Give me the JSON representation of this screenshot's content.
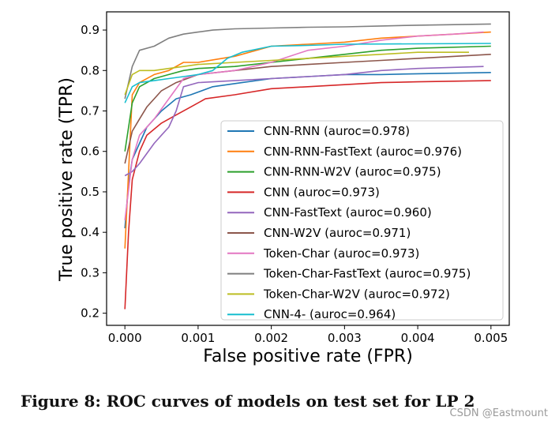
{
  "chart_data": {
    "type": "line",
    "title": "",
    "xlabel": "False positive rate (FPR)",
    "ylabel": "True positive rate (TPR)",
    "xlim": [
      -0.00025,
      0.00525
    ],
    "ylim": [
      0.17,
      0.945
    ],
    "xticks": [
      0.0,
      0.001,
      0.002,
      0.003,
      0.004,
      0.005
    ],
    "xtick_labels": [
      "0.000",
      "0.001",
      "0.002",
      "0.003",
      "0.004",
      "0.005"
    ],
    "yticks": [
      0.2,
      0.3,
      0.4,
      0.5,
      0.6,
      0.7,
      0.8,
      0.9
    ],
    "ytick_labels": [
      "0.2",
      "0.3",
      "0.4",
      "0.5",
      "0.6",
      "0.7",
      "0.8",
      "0.9"
    ],
    "grid": false,
    "legend_position": "lower-right",
    "series": [
      {
        "name": "CNN-RNN (auroc=0.978)",
        "color": "#1f77b4",
        "x": [
          0,
          5e-05,
          0.0001,
          0.0002,
          0.0003,
          0.0005,
          0.0007,
          0.0009,
          0.0012,
          0.0016,
          0.002,
          0.0025,
          0.003,
          0.0035,
          0.004,
          0.005
        ],
        "y": [
          0.41,
          0.52,
          0.58,
          0.62,
          0.66,
          0.7,
          0.73,
          0.74,
          0.76,
          0.77,
          0.78,
          0.785,
          0.79,
          0.79,
          0.792,
          0.795
        ]
      },
      {
        "name": "CNN-RNN-FastText (auroc=0.976)",
        "color": "#ff7f0e",
        "x": [
          0,
          0.0001,
          0.0002,
          0.0004,
          0.0006,
          0.0008,
          0.001,
          0.0015,
          0.002,
          0.0025,
          0.003,
          0.0035,
          0.004,
          0.0045,
          0.005
        ],
        "y": [
          0.36,
          0.74,
          0.77,
          0.79,
          0.8,
          0.82,
          0.82,
          0.835,
          0.86,
          0.865,
          0.87,
          0.88,
          0.885,
          0.89,
          0.895
        ]
      },
      {
        "name": "CNN-RNN-W2V (auroc=0.975)",
        "color": "#2ca02c",
        "x": [
          0,
          0.0001,
          0.0002,
          0.0004,
          0.0006,
          0.0008,
          0.001,
          0.0015,
          0.002,
          0.0025,
          0.003,
          0.0035,
          0.004,
          0.005
        ],
        "y": [
          0.6,
          0.72,
          0.76,
          0.78,
          0.79,
          0.8,
          0.805,
          0.81,
          0.82,
          0.83,
          0.84,
          0.85,
          0.855,
          0.86
        ]
      },
      {
        "name": "CNN (auroc=0.973)",
        "color": "#d62728",
        "x": [
          0,
          5e-05,
          0.0001,
          0.0002,
          0.0003,
          0.0005,
          0.0007,
          0.0009,
          0.0011,
          0.0015,
          0.002,
          0.0025,
          0.003,
          0.0035,
          0.004,
          0.005
        ],
        "y": [
          0.21,
          0.4,
          0.53,
          0.6,
          0.64,
          0.67,
          0.69,
          0.71,
          0.73,
          0.74,
          0.755,
          0.76,
          0.765,
          0.77,
          0.772,
          0.775
        ]
      },
      {
        "name": "CNN-FastText (auroc=0.960)",
        "color": "#9467bd",
        "x": [
          0,
          0.0001,
          0.0002,
          0.0004,
          0.0005,
          0.0006,
          0.0007,
          0.0008,
          0.001,
          0.0015,
          0.002,
          0.0025,
          0.003,
          0.0035,
          0.004,
          0.0049
        ],
        "y": [
          0.54,
          0.55,
          0.57,
          0.62,
          0.64,
          0.66,
          0.7,
          0.76,
          0.77,
          0.775,
          0.78,
          0.785,
          0.79,
          0.8,
          0.805,
          0.81
        ]
      },
      {
        "name": "CNN-W2V (auroc=0.971)",
        "color": "#8c564b",
        "x": [
          0,
          0.0001,
          0.0002,
          0.0003,
          0.0004,
          0.0005,
          0.0007,
          0.001,
          0.0015,
          0.002,
          0.0025,
          0.003,
          0.0035,
          0.004,
          0.005
        ],
        "y": [
          0.57,
          0.65,
          0.68,
          0.71,
          0.73,
          0.75,
          0.77,
          0.79,
          0.8,
          0.81,
          0.815,
          0.82,
          0.825,
          0.83,
          0.84
        ]
      },
      {
        "name": "Token-Char (auroc=0.973)",
        "color": "#e377c2",
        "x": [
          0,
          0.0001,
          0.0002,
          0.0004,
          0.0006,
          0.0008,
          0.001,
          0.0015,
          0.002,
          0.0025,
          0.003,
          0.0035,
          0.004,
          0.0045,
          0.0049
        ],
        "y": [
          0.43,
          0.58,
          0.64,
          0.68,
          0.73,
          0.78,
          0.79,
          0.8,
          0.82,
          0.85,
          0.86,
          0.875,
          0.885,
          0.89,
          0.895
        ]
      },
      {
        "name": "Token-Char-FastText (auroc=0.975)",
        "color": "#7f7f7f",
        "x": [
          0,
          0.0001,
          0.0002,
          0.0004,
          0.0006,
          0.0008,
          0.001,
          0.0012,
          0.0015,
          0.002,
          0.0025,
          0.003,
          0.0035,
          0.004,
          0.005
        ],
        "y": [
          0.73,
          0.81,
          0.85,
          0.86,
          0.88,
          0.89,
          0.895,
          0.9,
          0.903,
          0.905,
          0.907,
          0.908,
          0.91,
          0.912,
          0.915
        ]
      },
      {
        "name": "Token-Char-W2V (auroc=0.972)",
        "color": "#bcbd22",
        "x": [
          0,
          0.0001,
          0.0002,
          0.0004,
          0.0006,
          0.0008,
          0.001,
          0.0015,
          0.002,
          0.0025,
          0.003,
          0.0035,
          0.004,
          0.0047
        ],
        "y": [
          0.74,
          0.79,
          0.8,
          0.8,
          0.805,
          0.81,
          0.815,
          0.82,
          0.825,
          0.83,
          0.835,
          0.84,
          0.845,
          0.845
        ]
      },
      {
        "name": "CNN-4- (auroc=0.964)",
        "color": "#17becf",
        "x": [
          0,
          0.0001,
          0.0002,
          0.0004,
          0.0006,
          0.0008,
          0.001,
          0.0012,
          0.0014,
          0.0016,
          0.002,
          0.0025,
          0.003,
          0.004,
          0.005
        ],
        "y": [
          0.72,
          0.76,
          0.77,
          0.775,
          0.78,
          0.785,
          0.79,
          0.8,
          0.83,
          0.845,
          0.86,
          0.862,
          0.865,
          0.866,
          0.867
        ]
      }
    ]
  },
  "caption": "Figure 8: ROC curves of models on test set for LP 2",
  "watermark": "CSDN @Eastmount",
  "style": {
    "axis_color": "#000000",
    "legend_border": "#cccccc",
    "background": "#ffffff"
  }
}
